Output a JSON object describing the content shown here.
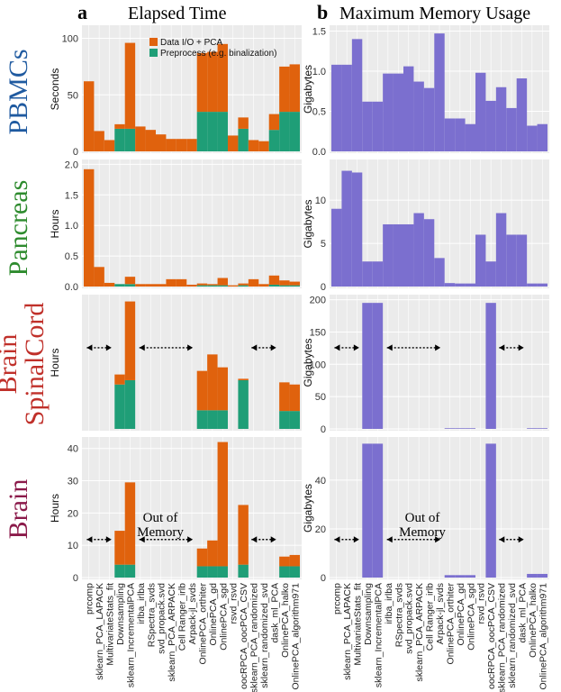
{
  "figure": {
    "panel_a_letter": "a",
    "panel_a_title": "Elapsed Time",
    "panel_b_letter": "b",
    "panel_b_title": "Maximum Memory Usage",
    "out_of_memory_line1": "Out of",
    "out_of_memory_line2": "Memory"
  },
  "colors": {
    "dataio": "#e0620d",
    "preprocess": "#1f9e77",
    "memory": "#7b6fcf",
    "panel_bg": "#ebebeb",
    "grid": "#ffffff",
    "PBMCs": "#1f5aa0",
    "Pancreas": "#2e8b2e",
    "BrainSpinalCord": "#c0302a",
    "Brain": "#8b1a4a"
  },
  "chart_data": {
    "type": "bar",
    "categories": [
      "prcomp",
      "sklearn_PCA_LAPACK",
      "MultivariateStats_fit",
      "Downsampling",
      "sklearn_IncrementalPCA",
      "irlba_irlba",
      "RSpectra_svds",
      "svd_propack.svd",
      "sklearn_PCA_ARPACK",
      "Cell Ranger_irlb",
      "Arpack-jl_svds",
      "OnlinePCA_orthiter",
      "OnlinePCA_gd",
      "OnlinePCA_sgd",
      "rsvd_rsvd",
      "oocRPCA_oocPCA_CSV",
      "sklearn_PCA_randomized",
      "sklearn_randomized_svd",
      "dask_ml_PCA",
      "OnlinePCA_halko",
      "OnlinePCA_algorithm971"
    ],
    "legend": {
      "dataio": "Data I/O + PCA",
      "preprocess": "Preprocess (e.g. binalization)"
    },
    "datasets": [
      {
        "name": "PBMCs",
        "time": {
          "ylabel": "Seconds",
          "ylim": [
            0,
            110
          ],
          "ticks": [
            0,
            50,
            100
          ],
          "dataio": [
            62,
            18,
            10,
            4,
            76,
            22,
            19,
            15,
            11,
            11,
            11,
            52,
            53,
            60,
            14,
            10,
            10,
            9,
            14,
            40,
            42
          ],
          "preprocess": [
            0,
            0,
            0,
            20,
            20,
            0,
            0,
            0,
            0,
            0,
            0,
            35,
            35,
            35,
            0,
            20,
            0,
            0,
            19,
            35,
            35
          ]
        },
        "memory": {
          "ylabel": "Gigabytes",
          "ylim": [
            0,
            1.55
          ],
          "ticks": [
            0.0,
            0.5,
            1.0,
            1.5
          ],
          "tick_labels": [
            "0.0",
            "0.5",
            "1.0",
            "1.5"
          ],
          "values": [
            1.08,
            1.08,
            1.4,
            0.62,
            0.62,
            0.97,
            0.97,
            1.06,
            0.87,
            0.79,
            1.47,
            0.41,
            0.41,
            0.34,
            0.98,
            0.63,
            0.8,
            0.54,
            0.91,
            0.32,
            0.34
          ]
        }
      },
      {
        "name": "Pancreas",
        "time": {
          "ylabel": "Hours",
          "ylim": [
            0,
            2.05
          ],
          "ticks": [
            0.0,
            0.5,
            1.0,
            1.5,
            2.0
          ],
          "tick_labels": [
            "0.0",
            "0.5",
            "1.0",
            "1.5",
            "2.0"
          ],
          "dataio": [
            1.92,
            0.32,
            0.06,
            0.0,
            0.12,
            0.04,
            0.04,
            0.04,
            0.12,
            0.12,
            0.03,
            0.03,
            0.02,
            0.12,
            0.02,
            0.03,
            0.12,
            0.04,
            0.15,
            0.08,
            0.06
          ],
          "preprocess": [
            0,
            0,
            0,
            0.04,
            0.04,
            0,
            0,
            0,
            0,
            0,
            0,
            0.02,
            0.02,
            0.02,
            0,
            0.02,
            0,
            0,
            0.03,
            0.02,
            0.02
          ]
        },
        "memory": {
          "ylabel": "Gigabytes",
          "ylim": [
            0,
            14.5
          ],
          "ticks": [
            0,
            5,
            10
          ],
          "tick_labels": [
            "0",
            "5",
            "10"
          ],
          "values": [
            9.0,
            13.4,
            13.2,
            2.9,
            2.9,
            7.2,
            7.2,
            7.2,
            8.5,
            7.8,
            3.3,
            0.4,
            0.35,
            0.35,
            6.0,
            2.9,
            8.5,
            6.0,
            6.0,
            0.35,
            0.35
          ]
        }
      },
      {
        "name": "BrainSpinalCord",
        "title_line1": "Brain",
        "title_line2": "SpinalCord",
        "time": {
          "ylabel": "Hours",
          "ylim": [
            0,
            1.85
          ],
          "ticks": [],
          "tick_labels": [],
          "dataio": [
            null,
            null,
            null,
            0.14,
            1.1,
            null,
            null,
            null,
            null,
            null,
            null,
            0.55,
            0.78,
            0.6,
            null,
            0.02,
            null,
            null,
            null,
            0.4,
            0.37
          ],
          "preprocess": [
            null,
            null,
            null,
            0.62,
            0.68,
            null,
            null,
            null,
            null,
            null,
            null,
            0.26,
            0.26,
            0.26,
            null,
            0.68,
            null,
            null,
            null,
            0.25,
            0.25
          ]
        },
        "memory": {
          "ylabel": "Gigabytes",
          "ylim": [
            0,
            205
          ],
          "ticks": [
            0,
            50,
            100,
            150,
            200
          ],
          "tick_labels": [
            "0",
            "50",
            "100",
            "150",
            "200"
          ],
          "values": [
            null,
            null,
            null,
            195,
            195,
            null,
            null,
            null,
            null,
            null,
            null,
            1,
            1,
            1,
            null,
            195,
            null,
            null,
            null,
            1,
            1
          ]
        }
      },
      {
        "name": "Brain",
        "time": {
          "ylabel": "Hours",
          "ylim": [
            0,
            43
          ],
          "ticks": [
            0,
            10,
            20,
            30,
            40
          ],
          "tick_labels": [
            "0",
            "10",
            "20",
            "30",
            "40"
          ],
          "dataio": [
            null,
            null,
            null,
            10.5,
            25.5,
            null,
            null,
            null,
            null,
            null,
            null,
            5.5,
            8.0,
            38.5,
            null,
            18.5,
            null,
            null,
            null,
            3.0,
            3.5
          ],
          "preprocess": [
            null,
            null,
            null,
            4.0,
            4.0,
            null,
            null,
            null,
            null,
            null,
            null,
            3.5,
            3.5,
            3.5,
            null,
            4.0,
            null,
            null,
            null,
            3.5,
            3.5
          ]
        },
        "memory": {
          "ylabel": "Gigabytes",
          "ylim": [
            0,
            57
          ],
          "ticks": [
            0,
            20,
            40
          ],
          "tick_labels": [
            "0",
            "20",
            "40"
          ],
          "values": [
            null,
            null,
            null,
            55,
            55,
            null,
            null,
            null,
            null,
            null,
            null,
            1,
            1,
            1,
            null,
            55,
            null,
            null,
            null,
            1.5,
            1.5
          ]
        }
      }
    ]
  }
}
